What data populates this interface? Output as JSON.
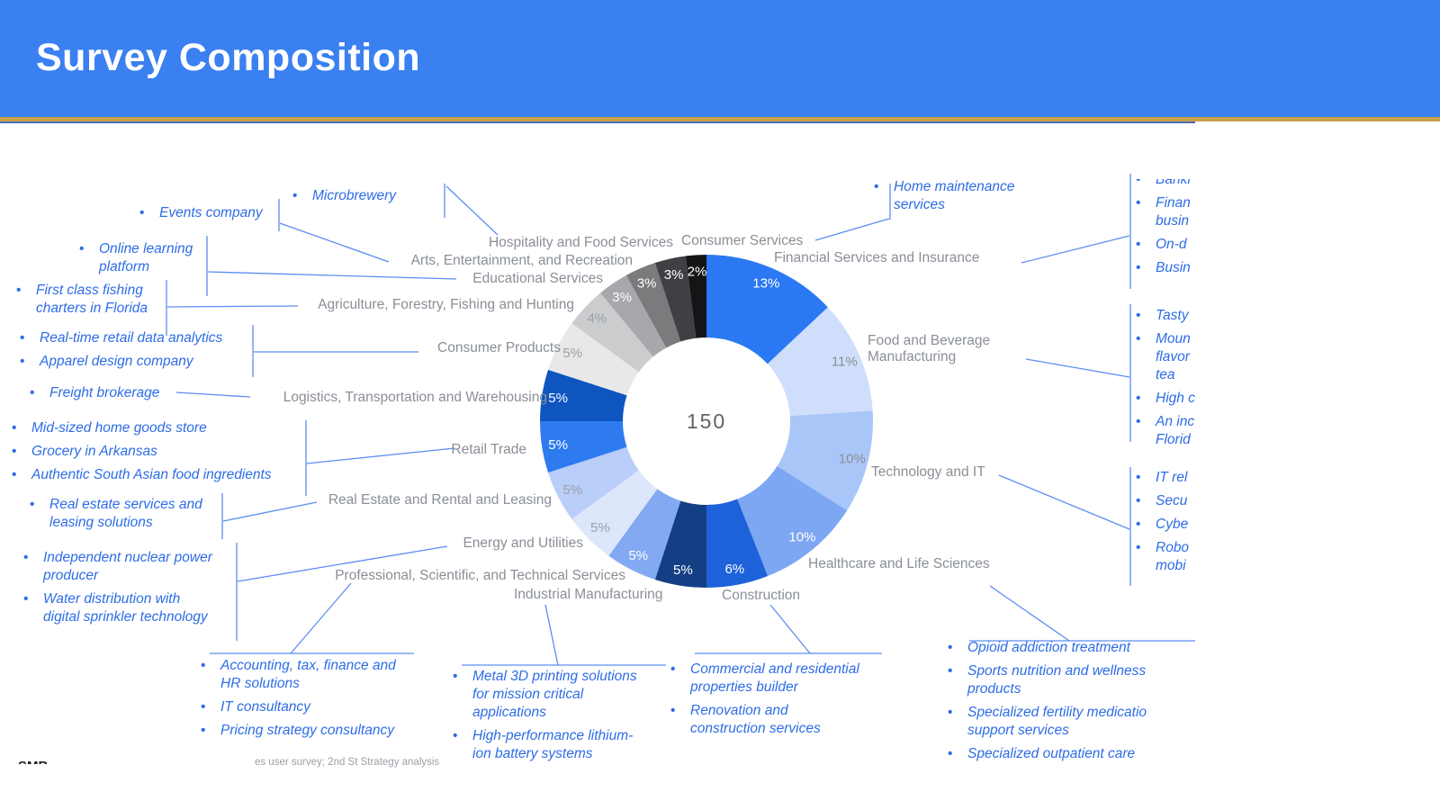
{
  "header": {
    "title": "Survey Composition",
    "bar_color": "#3b80f0",
    "accent_line_color": "#c9a24a"
  },
  "chart_data": {
    "type": "pie",
    "title": "Survey Composition",
    "center_total": "150",
    "legend_position": "around-chart",
    "slices": [
      {
        "id": "financial-services-and-insurance",
        "label": "Financial Services and Insurance",
        "value": 13,
        "pct": "13%",
        "color": "#2a79f2",
        "pct_color": "#ffffff"
      },
      {
        "id": "food-and-beverage-manufacturing",
        "label": "Food and Beverage Manufacturing",
        "value": 11,
        "pct": "11%",
        "color": "#cfdefb",
        "pct_color": "#8a8f96"
      },
      {
        "id": "technology-and-it",
        "label": "Technology and IT",
        "value": 10,
        "pct": "10%",
        "color": "#a9c6f8",
        "pct_color": "#8a8f96"
      },
      {
        "id": "healthcare-and-life-sciences",
        "label": "Healthcare and Life Sciences",
        "value": 10,
        "pct": "10%",
        "color": "#7da7f3",
        "pct_color": "#ffffff"
      },
      {
        "id": "construction",
        "label": "Construction",
        "value": 6,
        "pct": "6%",
        "color": "#1d62d9",
        "pct_color": "#ffffff"
      },
      {
        "id": "industrial-manufacturing",
        "label": "Industrial Manufacturing",
        "value": 5,
        "pct": "5%",
        "color": "#153f85",
        "pct_color": "#ffffff"
      },
      {
        "id": "professional-scientific-technical",
        "label": "Professional, Scientific, and Technical Services",
        "value": 5,
        "pct": "5%",
        "color": "#82a9f2",
        "pct_color": "#ffffff"
      },
      {
        "id": "energy-and-utilities",
        "label": "Energy and Utilities",
        "value": 5,
        "pct": "5%",
        "color": "#dde7fb",
        "pct_color": "#9aa0a8"
      },
      {
        "id": "real-estate-rental-leasing",
        "label": "Real Estate and Rental and Leasing",
        "value": 5,
        "pct": "5%",
        "color": "#b9cef8",
        "pct_color": "#9aa0a8"
      },
      {
        "id": "retail-trade",
        "label": "Retail Trade",
        "value": 5,
        "pct": "5%",
        "color": "#2e7bf0",
        "pct_color": "#ffffff"
      },
      {
        "id": "logistics-transportation-warehousing",
        "label": "Logistics, Transportation and Warehousing",
        "value": 5,
        "pct": "5%",
        "color": "#0f55c0",
        "pct_color": "#ffffff"
      },
      {
        "id": "consumer-products",
        "label": "Consumer Products",
        "value": 5,
        "pct": "5%",
        "color": "#e8e8e9",
        "pct_color": "#9aa0a8"
      },
      {
        "id": "agriculture-forestry-fishing-hunting",
        "label": "Agriculture, Forestry, Fishing and Hunting",
        "value": 4,
        "pct": "4%",
        "color": "#cbcccd",
        "pct_color": "#9aa0a8"
      },
      {
        "id": "educational-services",
        "label": "Educational Services",
        "value": 3,
        "pct": "3%",
        "color": "#a7a8ab",
        "pct_color": "#ffffff"
      },
      {
        "id": "arts-entertainment-recreation",
        "label": "Arts, Entertainment, and Recreation",
        "value": 3,
        "pct": "3%",
        "color": "#7b7b7e",
        "pct_color": "#ffffff"
      },
      {
        "id": "hospitality-and-food-services",
        "label": "Hospitality and Food Services",
        "value": 3,
        "pct": "3%",
        "color": "#404044",
        "pct_color": "#ffffff"
      },
      {
        "id": "consumer-services",
        "label": "Consumer Services",
        "value": 2,
        "pct": "2%",
        "color": "#151517",
        "pct_color": "#ffffff"
      }
    ]
  },
  "annotations": {
    "hospitality": {
      "items": [
        "Microbrewery"
      ]
    },
    "arts": {
      "items": [
        "Events company"
      ]
    },
    "educational": {
      "items": [
        "Online learning\nplatform"
      ]
    },
    "agriculture": {
      "items": [
        "First class fishing\ncharters in Florida"
      ]
    },
    "consumer_products": {
      "items": [
        "Real-time retail data analytics",
        "Apparel design company"
      ]
    },
    "logistics": {
      "items": [
        "Freight brokerage"
      ]
    },
    "retail": {
      "items": [
        "Mid-sized home goods store",
        "Grocery in Arkansas",
        "Authentic South Asian food ingredients"
      ]
    },
    "real_estate": {
      "items": [
        "Real estate services and\nleasing solutions"
      ]
    },
    "energy": {
      "items": [
        "Independent nuclear power\nproducer",
        "Water distribution with\ndigital sprinkler technology"
      ]
    },
    "professional": {
      "items": [
        "Accounting, tax, finance and\nHR solutions",
        "IT consultancy",
        "Pricing strategy consultancy"
      ]
    },
    "industrial": {
      "items": [
        "Metal 3D printing solutions\nfor mission critical\napplications",
        "High-performance lithium-\nion battery systems"
      ]
    },
    "construction": {
      "items": [
        "Commercial and residential\nproperties builder",
        "Renovation and\nconstruction services"
      ]
    },
    "healthcare": {
      "items": [
        "Opioid addiction treatment",
        "Sports nutrition and wellness\nproducts",
        "Specialized fertility medicatio\nsupport services",
        "Specialized outpatient care"
      ]
    },
    "consumer_services": {
      "items": [
        "Home maintenance\nservices"
      ]
    },
    "financial": {
      "items": [
        "Banki",
        "Finan\nbusin",
        "On-d",
        "Busin"
      ]
    },
    "food_bev": {
      "items": [
        "Tasty",
        "Moun\nflavor\ntea",
        "High c",
        "An inc\nFlorid"
      ]
    },
    "technology": {
      "items": [
        "IT rel",
        "Secu",
        "Cybe",
        "Robo\nmobi"
      ]
    }
  },
  "footer": {
    "source_fragment": "es user survey; 2nd St Strategy analysis",
    "clipped_logo_fragment": "SMB"
  }
}
